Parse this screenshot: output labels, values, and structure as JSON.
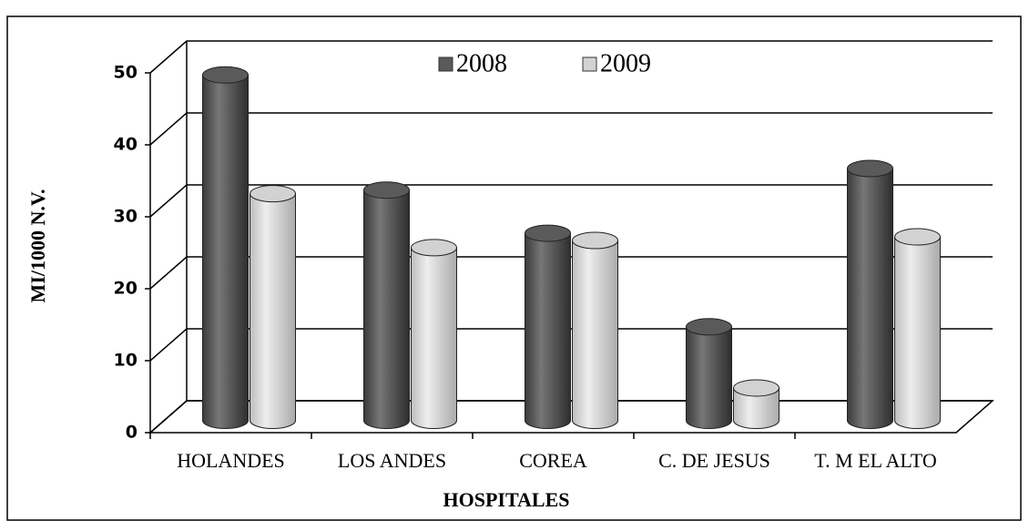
{
  "chart_data": {
    "type": "bar3d",
    "xlabel": "HOSPITALES",
    "ylabel": "MI/1000 N.V.",
    "categories": [
      "HOLANDES",
      "LOS ANDES",
      "COREA",
      "C. DE JESUS",
      "T. M EL ALTO"
    ],
    "series": [
      {
        "name": "2008",
        "color": "#5a5a5a",
        "values": [
          48,
          32,
          26,
          13,
          35
        ]
      },
      {
        "name": "2009",
        "color": "#d2d2d2",
        "values": [
          31.5,
          24,
          25,
          4.5,
          25.5
        ]
      }
    ],
    "ylim": [
      0,
      50
    ],
    "yticks": [
      0,
      10,
      20,
      30,
      40,
      50
    ],
    "grid": true,
    "legend": "top"
  }
}
